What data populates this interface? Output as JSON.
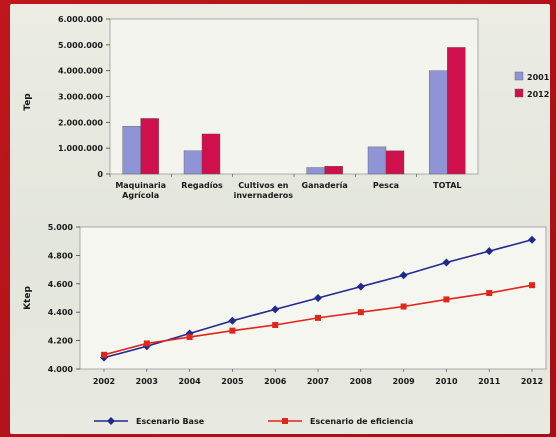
{
  "chart_data": [
    {
      "type": "bar",
      "ylabel": "Tep",
      "ylim": [
        0,
        6000000
      ],
      "yticks": [
        "0",
        "1.000.000",
        "2.000.000",
        "3.000.000",
        "4.000.000",
        "5.000.000",
        "6.000.000"
      ],
      "categories": [
        [
          "Maquinaria",
          "Agrícola"
        ],
        [
          "Regadíos"
        ],
        [
          "Cultivos en",
          "invernaderos"
        ],
        [
          "Ganadería"
        ],
        [
          "Pesca"
        ],
        [
          "TOTAL"
        ]
      ],
      "series": [
        {
          "name": "2001",
          "color": "#8f94d6",
          "values": [
            1850000,
            900000,
            0,
            250000,
            1050000,
            4000000
          ]
        },
        {
          "name": "2012",
          "color": "#d0104c",
          "values": [
            2150000,
            1550000,
            0,
            300000,
            900000,
            4900000
          ]
        }
      ],
      "legend": "right",
      "grid": false
    },
    {
      "type": "line",
      "ylabel": "Ktep",
      "ylim": [
        4000,
        5000
      ],
      "yticks": [
        "4.000",
        "4.200",
        "4.400",
        "4.600",
        "4.800",
        "5.000"
      ],
      "x": [
        "2002",
        "2003",
        "2004",
        "2005",
        "2006",
        "2007",
        "2008",
        "2009",
        "2010",
        "2011",
        "2012"
      ],
      "series": [
        {
          "name": "Escenario Base",
          "color": "#1f2a8c",
          "marker": "diamond",
          "values": [
            4080,
            4160,
            4250,
            4340,
            4420,
            4500,
            4580,
            4660,
            4750,
            4830,
            4910
          ]
        },
        {
          "name": "Escenario de eficiencia",
          "color": "#e0251b",
          "marker": "square",
          "values": [
            4100,
            4180,
            4225,
            4270,
            4310,
            4360,
            4400,
            4440,
            4490,
            4535,
            4590
          ]
        }
      ],
      "legend": "bottom",
      "grid": false
    }
  ]
}
